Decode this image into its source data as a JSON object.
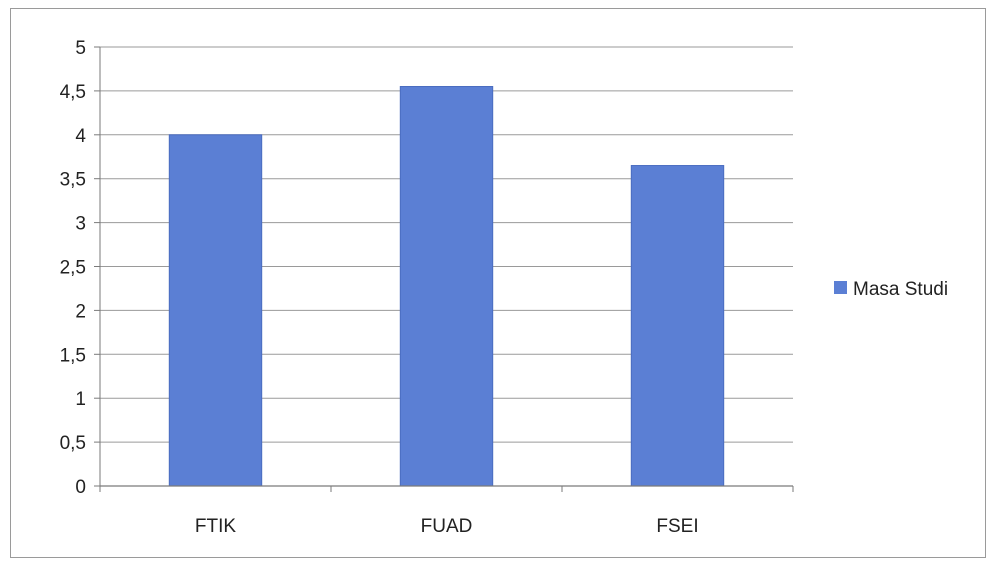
{
  "colors": {
    "bar": "#5b7fd4",
    "bar_edge": "#4a6cc0",
    "grid": "#9a9a9a",
    "axis": "#7a7a7a"
  },
  "chart_data": {
    "type": "bar",
    "categories": [
      "FTIK",
      "FUAD",
      "FSEI"
    ],
    "series": [
      {
        "name": "Masa Studi",
        "values": [
          4.0,
          4.55,
          3.65
        ]
      }
    ],
    "ylim": [
      0,
      5
    ],
    "ytick_step": 0.5,
    "ytick_labels": [
      "0",
      "0,5",
      "1",
      "1,5",
      "2",
      "2,5",
      "3",
      "3,5",
      "4",
      "4,5",
      "5"
    ],
    "grid": true,
    "legend": "right"
  }
}
